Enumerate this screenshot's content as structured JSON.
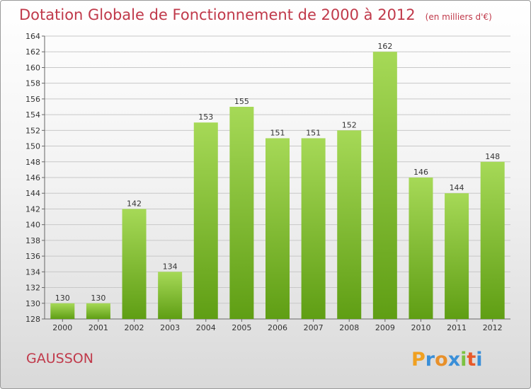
{
  "header": {
    "title": "Dotation Globale de Fonctionnement de 2000 à 2012",
    "unit": "(en milliers d'€)"
  },
  "footer": {
    "commune": "GAUSSON",
    "logo_text": "Proxiti"
  },
  "colors": {
    "title": "#c0394a",
    "bar_top": "#a6d957",
    "bar_bottom": "#5f9e14",
    "grid": "#c8c8c8"
  },
  "chart_data": {
    "type": "bar",
    "categories": [
      "2000",
      "2001",
      "2002",
      "2003",
      "2004",
      "2005",
      "2006",
      "2007",
      "2008",
      "2009",
      "2010",
      "2011",
      "2012"
    ],
    "values": [
      130,
      130,
      142,
      134,
      153,
      155,
      151,
      151,
      152,
      162,
      146,
      144,
      148
    ],
    "ylim": [
      128,
      164
    ],
    "yticks": [
      128,
      130,
      132,
      134,
      136,
      138,
      140,
      142,
      144,
      146,
      148,
      150,
      152,
      154,
      156,
      158,
      160,
      162,
      164
    ],
    "grid": true,
    "legend": "none"
  }
}
